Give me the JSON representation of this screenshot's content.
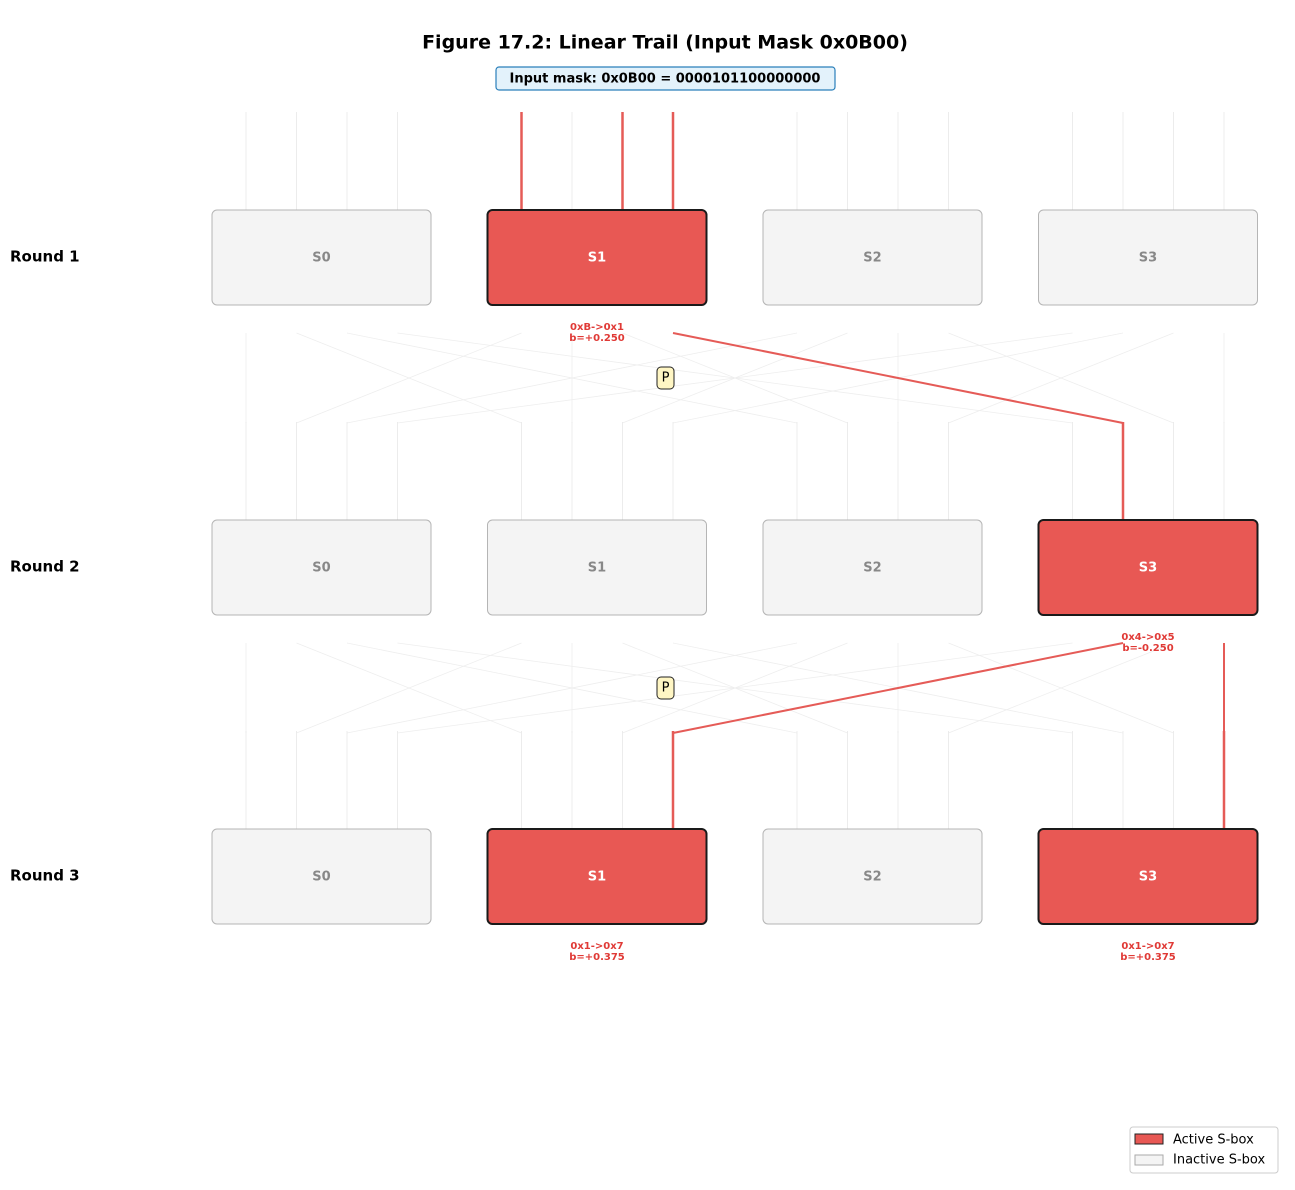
{
  "title": "Figure 17.2: Linear Trail (Input Mask 0x0B00)",
  "input_mask": "Input mask: 0x0B00 = 0000101100000000",
  "permutation_label": "P",
  "rounds": [
    {
      "label": "Round 1",
      "sboxes": [
        {
          "name": "S0",
          "active": false
        },
        {
          "name": "S1",
          "active": true,
          "annotation": [
            "0xB->0x1",
            "b=+0.250"
          ]
        },
        {
          "name": "S2",
          "active": false
        },
        {
          "name": "S3",
          "active": false
        }
      ]
    },
    {
      "label": "Round 2",
      "sboxes": [
        {
          "name": "S0",
          "active": false
        },
        {
          "name": "S1",
          "active": false
        },
        {
          "name": "S2",
          "active": false
        },
        {
          "name": "S3",
          "active": true,
          "annotation": [
            "0x4->0x5",
            "b=-0.250"
          ]
        }
      ]
    },
    {
      "label": "Round 3",
      "sboxes": [
        {
          "name": "S0",
          "active": false
        },
        {
          "name": "S1",
          "active": true,
          "annotation": [
            "0x1->0x7",
            "b=+0.375"
          ]
        },
        {
          "name": "S2",
          "active": false
        },
        {
          "name": "S3",
          "active": true,
          "annotation": [
            "0x1->0x7",
            "b=+0.375"
          ]
        }
      ]
    }
  ],
  "legend": {
    "active": "Active S-box",
    "inactive": "Inactive S-box"
  }
}
